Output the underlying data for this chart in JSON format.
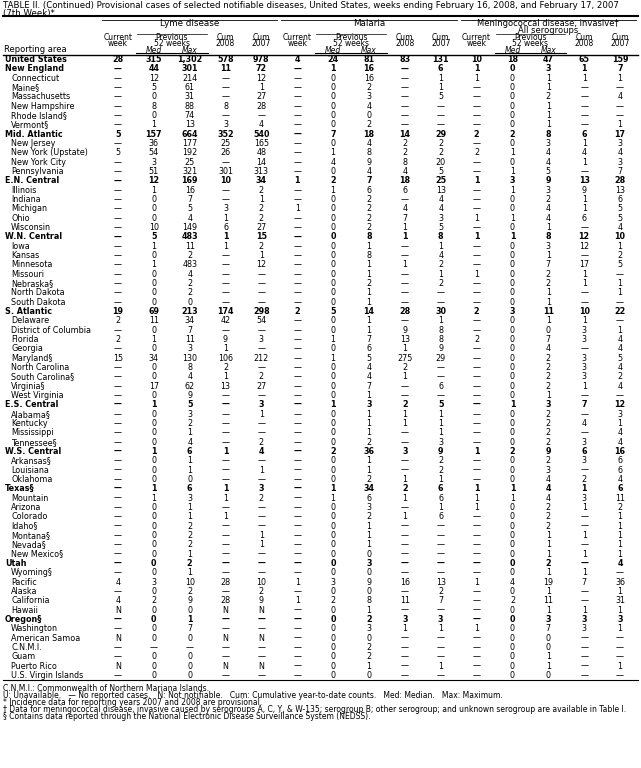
{
  "title_line1": "TABLE II. (Continued) Provisional cases of selected notifiable diseases, United States, weeks ending February 16, 2008, and February 17, 2007",
  "title_line2": "(7th Week)*",
  "footnotes": [
    "C.N.M.I.: Commonwealth of Northern Mariana Islands.",
    "U: Unavailable.   — No reported cases.   N: Not notifiable.   Cum: Cumulative year-to-date counts.   Med: Median.   Max: Maximum.",
    "* Incidence data for reporting years 2007 and 2008 are provisional.",
    "† Data for meningococcal disease, invasive caused by serogroups A, C, Y, & W-135; serogroup B; other serogroup; and unknown serogroup are available in Table I.",
    "§ Contains data reported through the National Electronic Disease Surveillance System (NEDSS)."
  ],
  "rows": [
    [
      "United States",
      "28",
      "315",
      "1,302",
      "578",
      "978",
      "4",
      "24",
      "81",
      "83",
      "131",
      "10",
      "18",
      "47",
      "65",
      "159"
    ],
    [
      "New England",
      "—",
      "44",
      "301",
      "11",
      "72",
      "—",
      "1",
      "16",
      "—",
      "6",
      "1",
      "0",
      "3",
      "1",
      "7"
    ],
    [
      "Connecticut",
      "—",
      "12",
      "214",
      "—",
      "12",
      "—",
      "0",
      "16",
      "—",
      "1",
      "1",
      "0",
      "1",
      "1",
      "1"
    ],
    [
      "Maine§",
      "—",
      "5",
      "61",
      "—",
      "1",
      "—",
      "0",
      "2",
      "—",
      "1",
      "—",
      "0",
      "1",
      "—",
      "—"
    ],
    [
      "Massachusetts",
      "—",
      "0",
      "31",
      "—",
      "27",
      "—",
      "0",
      "3",
      "—",
      "5",
      "—",
      "0",
      "2",
      "—",
      "4"
    ],
    [
      "New Hampshire",
      "—",
      "8",
      "88",
      "8",
      "28",
      "—",
      "0",
      "4",
      "—",
      "—",
      "—",
      "0",
      "1",
      "—",
      "—"
    ],
    [
      "Rhode Island§",
      "—",
      "0",
      "74",
      "—",
      "—",
      "—",
      "0",
      "0",
      "—",
      "—",
      "—",
      "0",
      "1",
      "—",
      "—"
    ],
    [
      "Vermont§",
      "—",
      "1",
      "13",
      "3",
      "4",
      "—",
      "0",
      "2",
      "—",
      "—",
      "—",
      "0",
      "1",
      "—",
      "1"
    ],
    [
      "Mid. Atlantic",
      "5",
      "157",
      "664",
      "352",
      "540",
      "—",
      "7",
      "18",
      "14",
      "29",
      "2",
      "2",
      "8",
      "6",
      "17"
    ],
    [
      "New Jersey",
      "—",
      "36",
      "177",
      "25",
      "165",
      "—",
      "0",
      "4",
      "2",
      "2",
      "—",
      "0",
      "3",
      "1",
      "3"
    ],
    [
      "New York (Upstate)",
      "5",
      "54",
      "192",
      "26",
      "48",
      "—",
      "1",
      "8",
      "2",
      "2",
      "2",
      "1",
      "4",
      "4",
      "4"
    ],
    [
      "New York City",
      "—",
      "3",
      "25",
      "—",
      "14",
      "—",
      "4",
      "9",
      "8",
      "20",
      "—",
      "0",
      "4",
      "1",
      "3"
    ],
    [
      "Pennsylvania",
      "—",
      "51",
      "321",
      "301",
      "313",
      "—",
      "0",
      "4",
      "4",
      "5",
      "—",
      "1",
      "5",
      "—",
      "7"
    ],
    [
      "E.N. Central",
      "—",
      "12",
      "169",
      "10",
      "34",
      "1",
      "2",
      "7",
      "18",
      "25",
      "1",
      "3",
      "9",
      "13",
      "28"
    ],
    [
      "Illinois",
      "—",
      "1",
      "16",
      "—",
      "2",
      "—",
      "1",
      "6",
      "6",
      "13",
      "—",
      "1",
      "3",
      "9",
      "13"
    ],
    [
      "Indiana",
      "—",
      "0",
      "7",
      "—",
      "1",
      "—",
      "0",
      "2",
      "—",
      "4",
      "—",
      "0",
      "2",
      "1",
      "6"
    ],
    [
      "Michigan",
      "—",
      "0",
      "5",
      "3",
      "2",
      "1",
      "0",
      "2",
      "4",
      "4",
      "—",
      "0",
      "4",
      "1",
      "5"
    ],
    [
      "Ohio",
      "—",
      "0",
      "4",
      "1",
      "2",
      "—",
      "0",
      "2",
      "7",
      "3",
      "1",
      "1",
      "4",
      "6",
      "5"
    ],
    [
      "Wisconsin",
      "—",
      "10",
      "149",
      "6",
      "27",
      "—",
      "0",
      "2",
      "1",
      "5",
      "—",
      "0",
      "1",
      "—",
      "4"
    ],
    [
      "W.N. Central",
      "—",
      "5",
      "483",
      "1",
      "15",
      "—",
      "0",
      "8",
      "1",
      "8",
      "1",
      "1",
      "8",
      "12",
      "10"
    ],
    [
      "Iowa",
      "—",
      "1",
      "11",
      "1",
      "2",
      "—",
      "0",
      "1",
      "—",
      "1",
      "—",
      "0",
      "3",
      "12",
      "1"
    ],
    [
      "Kansas",
      "—",
      "0",
      "2",
      "—",
      "1",
      "—",
      "0",
      "8",
      "—",
      "4",
      "—",
      "0",
      "1",
      "—",
      "2"
    ],
    [
      "Minnesota",
      "—",
      "1",
      "483",
      "—",
      "12",
      "—",
      "0",
      "1",
      "1",
      "2",
      "—",
      "0",
      "7",
      "17",
      "5"
    ],
    [
      "Missouri",
      "—",
      "0",
      "4",
      "—",
      "—",
      "—",
      "0",
      "1",
      "—",
      "1",
      "1",
      "0",
      "2",
      "1",
      "—"
    ],
    [
      "Nebraska§",
      "—",
      "0",
      "2",
      "—",
      "—",
      "—",
      "0",
      "2",
      "—",
      "2",
      "—",
      "0",
      "2",
      "1",
      "1"
    ],
    [
      "North Dakota",
      "—",
      "0",
      "2",
      "—",
      "—",
      "—",
      "0",
      "1",
      "—",
      "—",
      "—",
      "0",
      "1",
      "—",
      "1"
    ],
    [
      "South Dakota",
      "—",
      "0",
      "0",
      "—",
      "—",
      "—",
      "0",
      "1",
      "—",
      "—",
      "—",
      "0",
      "1",
      "—",
      "—"
    ],
    [
      "S. Atlantic",
      "19",
      "69",
      "213",
      "174",
      "298",
      "2",
      "5",
      "14",
      "28",
      "30",
      "2",
      "3",
      "11",
      "10",
      "22"
    ],
    [
      "Delaware",
      "2",
      "11",
      "34",
      "42",
      "54",
      "—",
      "0",
      "1",
      "—",
      "1",
      "—",
      "0",
      "1",
      "1",
      "—"
    ],
    [
      "District of Columbia",
      "—",
      "0",
      "7",
      "—",
      "—",
      "—",
      "0",
      "1",
      "9",
      "8",
      "—",
      "0",
      "0",
      "3",
      "1"
    ],
    [
      "Florida",
      "2",
      "1",
      "11",
      "9",
      "3",
      "—",
      "1",
      "7",
      "13",
      "8",
      "2",
      "0",
      "7",
      "3",
      "4"
    ],
    [
      "Georgia",
      "—",
      "0",
      "3",
      "1",
      "—",
      "—",
      "0",
      "6",
      "1",
      "9",
      "—",
      "0",
      "4",
      "—",
      "4"
    ],
    [
      "Maryland§",
      "15",
      "34",
      "130",
      "106",
      "212",
      "—",
      "1",
      "5",
      "275",
      "29",
      "—",
      "0",
      "2",
      "3",
      "5"
    ],
    [
      "North Carolina",
      "—",
      "0",
      "8",
      "2",
      "—",
      "—",
      "0",
      "4",
      "2",
      "—",
      "—",
      "0",
      "2",
      "3",
      "4"
    ],
    [
      "South Carolina§",
      "—",
      "0",
      "4",
      "1",
      "2",
      "—",
      "0",
      "4",
      "1",
      "—",
      "—",
      "0",
      "2",
      "3",
      "2"
    ],
    [
      "Virginia§",
      "—",
      "17",
      "62",
      "13",
      "27",
      "—",
      "0",
      "7",
      "—",
      "6",
      "—",
      "0",
      "2",
      "1",
      "4"
    ],
    [
      "West Virginia",
      "—",
      "0",
      "9",
      "—",
      "—",
      "—",
      "0",
      "1",
      "—",
      "—",
      "—",
      "0",
      "1",
      "—",
      "—"
    ],
    [
      "E.S. Central",
      "—",
      "1",
      "5",
      "—",
      "3",
      "—",
      "1",
      "3",
      "2",
      "5",
      "—",
      "1",
      "3",
      "7",
      "12"
    ],
    [
      "Alabama§",
      "—",
      "0",
      "3",
      "—",
      "1",
      "—",
      "0",
      "1",
      "1",
      "1",
      "—",
      "0",
      "2",
      "—",
      "3"
    ],
    [
      "Kentucky",
      "—",
      "0",
      "2",
      "—",
      "—",
      "—",
      "0",
      "1",
      "1",
      "1",
      "—",
      "0",
      "2",
      "4",
      "1"
    ],
    [
      "Mississippi",
      "—",
      "0",
      "1",
      "—",
      "—",
      "—",
      "0",
      "1",
      "—",
      "1",
      "—",
      "0",
      "2",
      "—",
      "4"
    ],
    [
      "Tennessee§",
      "—",
      "0",
      "4",
      "—",
      "2",
      "—",
      "0",
      "2",
      "—",
      "3",
      "—",
      "0",
      "2",
      "3",
      "4"
    ],
    [
      "W.S. Central",
      "—",
      "1",
      "6",
      "1",
      "4",
      "—",
      "2",
      "36",
      "3",
      "9",
      "1",
      "2",
      "9",
      "6",
      "16"
    ],
    [
      "Arkansas§",
      "—",
      "0",
      "1",
      "—",
      "—",
      "—",
      "0",
      "1",
      "—",
      "2",
      "—",
      "0",
      "2",
      "3",
      "6"
    ],
    [
      "Louisiana",
      "—",
      "0",
      "1",
      "—",
      "1",
      "—",
      "0",
      "1",
      "—",
      "2",
      "—",
      "0",
      "3",
      "—",
      "6"
    ],
    [
      "Oklahoma",
      "—",
      "0",
      "0",
      "—",
      "—",
      "—",
      "0",
      "2",
      "1",
      "1",
      "—",
      "0",
      "4",
      "2",
      "4"
    ],
    [
      "Texas§",
      "—",
      "1",
      "6",
      "1",
      "3",
      "—",
      "1",
      "34",
      "2",
      "6",
      "1",
      "1",
      "4",
      "1",
      "6"
    ],
    [
      "Mountain",
      "—",
      "1",
      "3",
      "1",
      "2",
      "—",
      "1",
      "6",
      "1",
      "6",
      "1",
      "1",
      "4",
      "3",
      "11"
    ],
    [
      "Arizona",
      "—",
      "0",
      "1",
      "—",
      "—",
      "—",
      "0",
      "3",
      "—",
      "1",
      "1",
      "0",
      "2",
      "1",
      "2"
    ],
    [
      "Colorado",
      "—",
      "0",
      "1",
      "1",
      "—",
      "—",
      "0",
      "2",
      "1",
      "6",
      "—",
      "0",
      "2",
      "—",
      "1"
    ],
    [
      "Idaho§",
      "—",
      "0",
      "2",
      "—",
      "—",
      "—",
      "0",
      "1",
      "—",
      "—",
      "—",
      "0",
      "2",
      "—",
      "1"
    ],
    [
      "Montana§",
      "—",
      "0",
      "2",
      "—",
      "1",
      "—",
      "0",
      "1",
      "—",
      "—",
      "—",
      "0",
      "1",
      "1",
      "1"
    ],
    [
      "Nevada§",
      "—",
      "0",
      "2",
      "—",
      "1",
      "—",
      "0",
      "1",
      "—",
      "—",
      "—",
      "0",
      "1",
      "—",
      "1"
    ],
    [
      "New Mexico§",
      "—",
      "0",
      "1",
      "—",
      "—",
      "—",
      "0",
      "0",
      "—",
      "—",
      "—",
      "0",
      "1",
      "1",
      "1"
    ],
    [
      "Utah",
      "—",
      "0",
      "2",
      "—",
      "—",
      "—",
      "0",
      "3",
      "—",
      "—",
      "—",
      "0",
      "2",
      "—",
      "4"
    ],
    [
      "Wyoming§",
      "—",
      "0",
      "1",
      "—",
      "—",
      "—",
      "0",
      "0",
      "—",
      "—",
      "—",
      "0",
      "1",
      "1",
      "—"
    ],
    [
      "Pacific",
      "4",
      "3",
      "10",
      "28",
      "10",
      "1",
      "3",
      "9",
      "16",
      "13",
      "1",
      "4",
      "19",
      "7",
      "36"
    ],
    [
      "Alaska",
      "—",
      "0",
      "2",
      "—",
      "2",
      "—",
      "0",
      "0",
      "—",
      "2",
      "—",
      "0",
      "1",
      "—",
      "1"
    ],
    [
      "California",
      "4",
      "2",
      "9",
      "28",
      "9",
      "1",
      "2",
      "8",
      "11",
      "7",
      "—",
      "2",
      "11",
      "—",
      "31"
    ],
    [
      "Hawaii",
      "N",
      "0",
      "0",
      "N",
      "N",
      "—",
      "0",
      "1",
      "—",
      "—",
      "—",
      "0",
      "1",
      "1",
      "1"
    ],
    [
      "Oregon§",
      "—",
      "0",
      "1",
      "—",
      "—",
      "—",
      "0",
      "2",
      "3",
      "3",
      "—",
      "0",
      "3",
      "3",
      "3"
    ],
    [
      "Washington",
      "—",
      "0",
      "7",
      "—",
      "—",
      "—",
      "0",
      "3",
      "1",
      "1",
      "1",
      "0",
      "7",
      "3",
      "1"
    ],
    [
      "American Samoa",
      "N",
      "0",
      "0",
      "N",
      "N",
      "—",
      "0",
      "0",
      "—",
      "—",
      "—",
      "0",
      "0",
      "—",
      "—"
    ],
    [
      "C.N.M.I.",
      "—",
      "—",
      "—",
      "—",
      "—",
      "—",
      "0",
      "2",
      "—",
      "—",
      "—",
      "0",
      "0",
      "—",
      "—"
    ],
    [
      "Guam",
      "—",
      "0",
      "0",
      "—",
      "—",
      "—",
      "0",
      "2",
      "—",
      "—",
      "—",
      "0",
      "1",
      "—",
      "—"
    ],
    [
      "Puerto Rico",
      "N",
      "0",
      "0",
      "N",
      "N",
      "—",
      "0",
      "1",
      "—",
      "1",
      "—",
      "0",
      "1",
      "—",
      "1"
    ],
    [
      "U.S. Virgin Islands",
      "—",
      "0",
      "0",
      "—",
      "—",
      "—",
      "0",
      "0",
      "—",
      "—",
      "—",
      "0",
      "0",
      "—",
      "—"
    ]
  ],
  "bold_rows": [
    0,
    1,
    8,
    13,
    19,
    27,
    37,
    42,
    46,
    54,
    60
  ],
  "section_rows": [
    0,
    1,
    8,
    13,
    19,
    27,
    37,
    42,
    46,
    54,
    60
  ]
}
